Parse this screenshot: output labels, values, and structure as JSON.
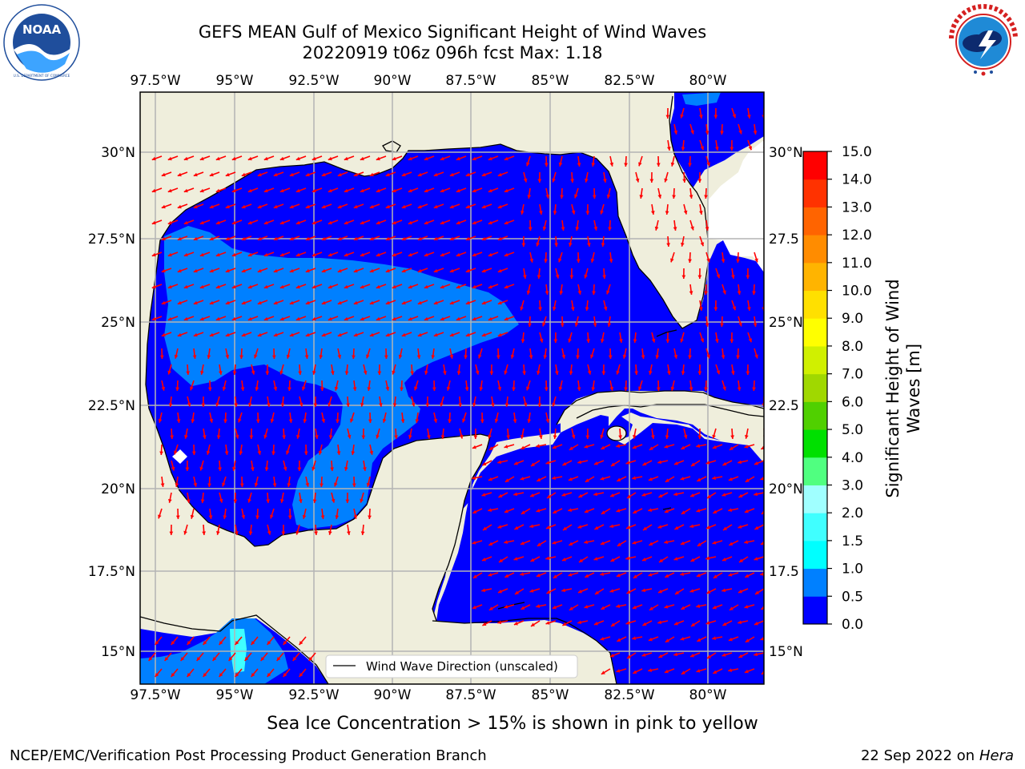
{
  "header": {
    "title_line1": "GEFS MEAN Gulf of Mexico Significant Height of Wind Waves",
    "title_line2": "20220919 t06z 096h fcst   Max: 1.18"
  },
  "logos": {
    "left": {
      "name": "NOAA",
      "text": "NOAA",
      "ring_text": "NATIONAL OCEANIC AND ATMOSPHERIC ADMINISTRATION · U.S. DEPARTMENT OF COMMERCE"
    },
    "right": {
      "name": "National Weather Service",
      "ring_text": "NATIONAL WEATHER SERVICE"
    }
  },
  "map": {
    "lon_ticks": [
      "97.5°W",
      "95°W",
      "92.5°W",
      "90°W",
      "87.5°W",
      "85°W",
      "82.5°W",
      "80°W"
    ],
    "lat_ticks_left": [
      "30°N",
      "27.5°N",
      "25°N",
      "22.5°N",
      "20°N",
      "17.5°N",
      "15°N"
    ],
    "lat_ticks_right": [
      "30°N",
      "27.5",
      "25°N",
      "22.5",
      "20°N",
      "17.5",
      "15°N"
    ],
    "legend_label": "Wind Wave Direction (unscaled)",
    "colors": {
      "land": "#efeedc",
      "water_low": "#0000ff",
      "water_mid": "#0080ff",
      "water_cyan": "#40ffff",
      "arrow": "#ff0000",
      "grid": "#b0b0b0"
    }
  },
  "colorbar": {
    "label_line1": "Significant Height of Wind",
    "label_line2": "Waves [m]",
    "ticks": [
      "15.0",
      "14.0",
      "13.0",
      "12.0",
      "11.0",
      "10.0",
      "9.0",
      "8.0",
      "7.0",
      "6.0",
      "5.0",
      "4.0",
      "3.0",
      "2.0",
      "1.5",
      "1.0",
      "0.5",
      "0.0"
    ],
    "colors": [
      "#0000ff",
      "#0080ff",
      "#00ffff",
      "#40ffff",
      "#a0ffff",
      "#50ff80",
      "#00e000",
      "#50d000",
      "#a0d800",
      "#d0f000",
      "#ffff00",
      "#ffe000",
      "#ffb400",
      "#ff8c00",
      "#ff6400",
      "#ff3200",
      "#ff0000"
    ]
  },
  "footer": {
    "sea_ice_note": "Sea Ice Concentration > 15% is shown in pink to yellow",
    "credit": "NCEP/EMC/Verification Post Processing Product Generation Branch",
    "date": "22 Sep 2022 on",
    "host": "Hera"
  }
}
